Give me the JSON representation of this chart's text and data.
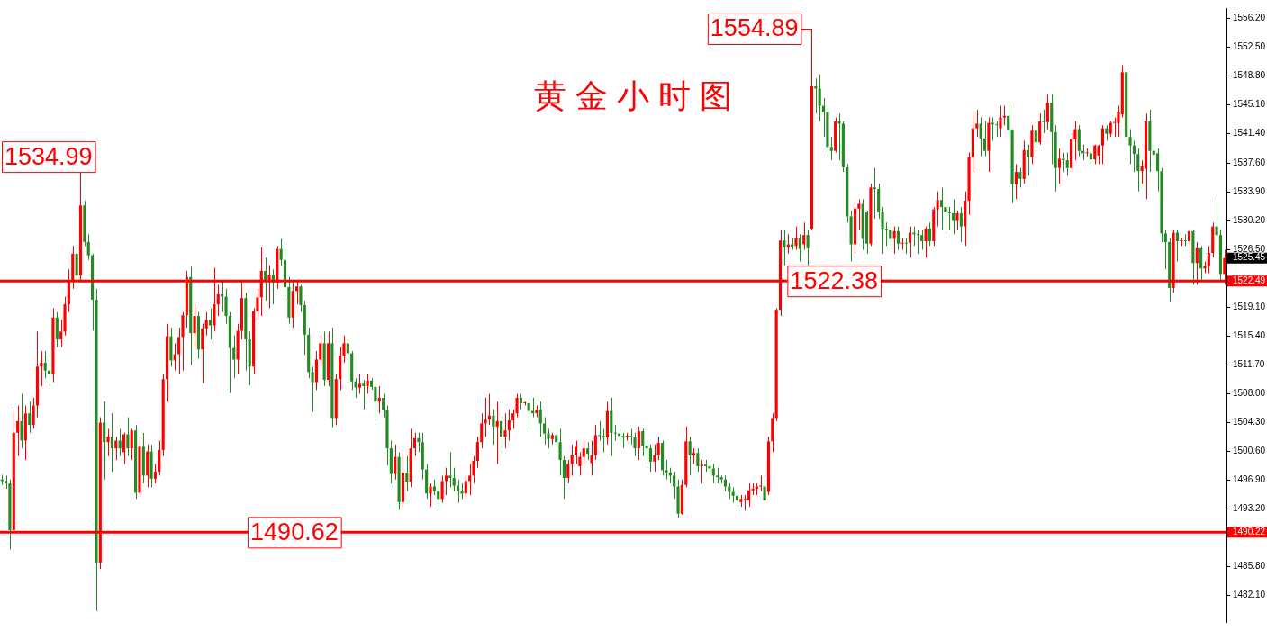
{
  "chart_data": {
    "type": "candlestick",
    "title": "黄金小时图",
    "colors": [
      "#228b22",
      "#228b22",
      "#228b22",
      "#ff0000",
      "#ff0000",
      "#228b22",
      "#ff0000",
      "#228b22",
      "#ff0000",
      "#ff0000",
      "#ff0000",
      "#228b22",
      "#228b22",
      "#ff0000",
      "#228b22",
      "#ff0000",
      "#ff0000",
      "#ff0000",
      "#ff0000",
      "#228b22",
      "#ff0000",
      "#228b22",
      "#228b22",
      "#228b22",
      "#228b22",
      "#ff0000",
      "#228b22",
      "#ff0000",
      "#228b22",
      "#ff0000",
      "#228b22",
      "#ff0000",
      "#228b22",
      "#ff0000",
      "#228b22",
      "#ff0000",
      "#228b22",
      "#ff0000",
      "#228b22",
      "#ff0000",
      "#ff0000",
      "#ff0000",
      "#ff0000",
      "#228b22",
      "#ff0000",
      "#ff0000",
      "#ff0000",
      "#ff0000",
      "#228b22",
      "#ff0000",
      "#228b22",
      "#ff0000",
      "#ff0000",
      "#228b22",
      "#ff0000",
      "#ff0000",
      "#228b22",
      "#228b22",
      "#228b22",
      "#228b22",
      "#ff0000",
      "#ff0000",
      "#228b22",
      "#228b22",
      "#ff0000",
      "#ff0000",
      "#ff0000",
      "#228b22",
      "#ff0000",
      "#228b22",
      "#ff0000",
      "#228b22",
      "#228b22",
      "#228b22",
      "#ff0000",
      "#ff0000",
      "#228b22",
      "#228b22",
      "#228b22",
      "#228b22",
      "#ff0000",
      "#ff0000",
      "#228b22",
      "#ff0000",
      "#228b22",
      "#ff0000",
      "#ff0000",
      "#ff0000",
      "#228b22",
      "#228b22",
      "#228b22",
      "#ff0000",
      "#228b22",
      "#ff0000",
      "#228b22",
      "#228b22",
      "#ff0000",
      "#228b22",
      "#228b22",
      "#228b22",
      "#ff0000",
      "#228b22",
      "#ff0000",
      "#228b22",
      "#ff0000",
      "#ff0000",
      "#228b22",
      "#228b22",
      "#228b22",
      "#ff0000",
      "#228b22",
      "#228b22",
      "#ff0000",
      "#ff0000",
      "#228b22",
      "#228b22",
      "#228b22",
      "#228b22",
      "#ff0000",
      "#ff0000",
      "#ff0000",
      "#ff0000",
      "#ff0000",
      "#ff0000",
      "#ff0000",
      "#228b22",
      "#ff0000",
      "#228b22",
      "#ff0000",
      "#ff0000",
      "#ff0000",
      "#ff0000",
      "#228b22",
      "#ff0000",
      "#228b22",
      "#228b22",
      "#ff0000",
      "#228b22",
      "#228b22",
      "#228b22",
      "#ff0000",
      "#228b22",
      "#228b22",
      "#228b22",
      "#ff0000",
      "#ff0000",
      "#ff0000",
      "#ff0000",
      "#ff0000",
      "#228b22",
      "#ff0000",
      "#ff0000",
      "#228b22",
      "#228b22",
      "#ff0000",
      "#228b22",
      "#228b22",
      "#228b22",
      "#228b22",
      "#ff0000",
      "#228b22",
      "#228b22",
      "#ff0000",
      "#228b22",
      "#228b22",
      "#228b22",
      "#ff0000",
      "#ff0000",
      "#228b22",
      "#228b22",
      "#228b22",
      "#228b22",
      "#228b22",
      "#ff0000",
      "#ff0000",
      "#228b22",
      "#ff0000",
      "#228b22",
      "#ff0000",
      "#228b22",
      "#228b22",
      "#228b22",
      "#228b22",
      "#228b22",
      "#228b22",
      "#228b22",
      "#228b22",
      "#228b22",
      "#ff0000",
      "#ff0000",
      "#ff0000",
      "#ff0000",
      "#ff0000",
      "#ff0000",
      "#228b22",
      "#ff0000",
      "#ff0000",
      "#ff0000",
      "#ff0000",
      "#228b22",
      "#ff0000",
      "#228b22",
      "#ff0000",
      "#228b22",
      "#ff0000",
      "#228b22",
      "#ff0000",
      "#228b22",
      "#228b22",
      "#228b22",
      "#228b22",
      "#228b22",
      "#ff0000",
      "#228b22",
      "#228b22",
      "#228b22",
      "#228b22",
      "#ff0000",
      "#ff0000",
      "#228b22",
      "#228b22",
      "#ff0000",
      "#228b22",
      "#228b22",
      "#228b22",
      "#228b22",
      "#228b22",
      "#ff0000",
      "#228b22",
      "#ff0000",
      "#228b22",
      "#ff0000",
      "#228b22",
      "#228b22",
      "#228b22",
      "#ff0000",
      "#228b22",
      "#ff0000",
      "#ff0000",
      "#228b22",
      "#228b22",
      "#228b22",
      "#228b22",
      "#ff0000",
      "#228b22",
      "#ff0000",
      "#ff0000",
      "#ff0000",
      "#ff0000",
      "#228b22",
      "#228b22",
      "#ff0000",
      "#228b22",
      "#228b22",
      "#ff0000",
      "#ff0000",
      "#228b22",
      "#228b22",
      "#ff0000",
      "#228b22",
      "#ff0000",
      "#228b22",
      "#ff0000",
      "#228b22",
      "#ff0000",
      "#228b22",
      "#ff0000",
      "#228b22",
      "#228b22",
      "#ff0000",
      "#228b22",
      "#228b22",
      "#ff0000",
      "#ff0000",
      "#228b22",
      "#228b22",
      "#ff0000",
      "#228b22",
      "#ff0000",
      "#ff0000",
      "#ff0000",
      "#228b22",
      "#ff0000",
      "#ff0000",
      "#ff0000",
      "#ff0000",
      "#228b22",
      "#228b22",
      "#228b22",
      "#228b22",
      "#ff0000",
      "#ff0000",
      "#228b22",
      "#228b22",
      "#228b22",
      "#228b22",
      "#228b22",
      "#228b22",
      "#ff0000",
      "#228b22",
      "#ff0000",
      "#228b22",
      "#ff0000",
      "#228b22",
      "#ff0000",
      "#228b22",
      "#ff0000",
      "#ff0000",
      "#ff0000",
      "#228b22",
      "#228b22",
      "#ff0000"
    ],
    "ylim": [
      1478.7,
      1557.55
    ],
    "yticks": [
      {
        "value": 1482.1,
        "label": "1482.10"
      },
      {
        "value": 1485.8,
        "label": "1485.80"
      },
      {
        "value": 1493.2,
        "label": "1493.20"
      },
      {
        "value": 1496.9,
        "label": "1496.90"
      },
      {
        "value": 1500.6,
        "label": "1500.60"
      },
      {
        "value": 1504.3,
        "label": "1504.30"
      },
      {
        "value": 1508,
        "label": "1508.00"
      },
      {
        "value": 1511.7,
        "label": "1511.70"
      },
      {
        "value": 1515.4,
        "label": "1515.40"
      },
      {
        "value": 1519.1,
        "label": "1519.10"
      },
      {
        "value": 1526.5,
        "label": "1526.50"
      },
      {
        "value": 1530.2,
        "label": "1530.20"
      },
      {
        "value": 1533.9,
        "label": "1533.90"
      },
      {
        "value": 1537.6,
        "label": "1537.60"
      },
      {
        "value": 1541.4,
        "label": "1541.40"
      },
      {
        "value": 1545.1,
        "label": "1545.10"
      },
      {
        "value": 1548.8,
        "label": "1548.80"
      },
      {
        "value": 1552.5,
        "label": "1552.50"
      },
      {
        "value": 1556.2,
        "label": "1556.20"
      }
    ],
    "ref_lines": [
      {
        "axis": "y",
        "value": 1522.49,
        "label": "1522.49",
        "color": "#ff0000"
      },
      {
        "axis": "y",
        "value": 1490.22,
        "label": "1490.22",
        "color": "#ff0000"
      }
    ],
    "annotations": [
      "1534.99",
      "1554.89",
      "1522.38",
      "1490.62",
      "1525.45"
    ],
    "categories": [
      null,
      null,
      null,
      null,
      null,
      null,
      null,
      null,
      null,
      null,
      null,
      null,
      null,
      null,
      null,
      null,
      null,
      null,
      null,
      null,
      null,
      null,
      null,
      null,
      null,
      null,
      null,
      null,
      null,
      null,
      null,
      null,
      null,
      null,
      null,
      null,
      null,
      null,
      null,
      null,
      null,
      null,
      null,
      null,
      null,
      null,
      null,
      null,
      null,
      null,
      null,
      null,
      null,
      null,
      null,
      null,
      null,
      null,
      null,
      null,
      null,
      null,
      null,
      null,
      null,
      null,
      null,
      null,
      null,
      null,
      null,
      null,
      null,
      null,
      null,
      null,
      null,
      null,
      null,
      null,
      null,
      null,
      null,
      null,
      null,
      null,
      null,
      null,
      null,
      null,
      null,
      null,
      null,
      null,
      null,
      null,
      null,
      null,
      null,
      null,
      null,
      null,
      null,
      null,
      null,
      null,
      null,
      null,
      null,
      null,
      null,
      null,
      null,
      null,
      null,
      null,
      null,
      null,
      null,
      null,
      null,
      null,
      null,
      null,
      null,
      null,
      null,
      null,
      null,
      null,
      null,
      null,
      null,
      null,
      null,
      null,
      null,
      null,
      null,
      null,
      null,
      null,
      null,
      null,
      null,
      null,
      null,
      null,
      null,
      null,
      null,
      null,
      null,
      null,
      null,
      null,
      null,
      null,
      null,
      null,
      null,
      null,
      null,
      null,
      null,
      null,
      null,
      null,
      null,
      null,
      null,
      null,
      null,
      null,
      null,
      null,
      null,
      null,
      null,
      null,
      null,
      null,
      null,
      null,
      null,
      null,
      null,
      null,
      null,
      null,
      null,
      null,
      null,
      null,
      null,
      null,
      null,
      null,
      null,
      null,
      null,
      null,
      null,
      null,
      null,
      null,
      null,
      null,
      null,
      null,
      null,
      null,
      null,
      null,
      null,
      null,
      null,
      null,
      null,
      null,
      null,
      null,
      null,
      null,
      null,
      null,
      null,
      null,
      null,
      null,
      null,
      null,
      null,
      null,
      null,
      null,
      null,
      null,
      null,
      null,
      null,
      null,
      null,
      null,
      null,
      null,
      null,
      null,
      null,
      null,
      null,
      null,
      null,
      null,
      null,
      null,
      null,
      null,
      null,
      null,
      null,
      null,
      null,
      null,
      null,
      null,
      null,
      null,
      null,
      null,
      null,
      null,
      null,
      null,
      null,
      null,
      null,
      null,
      null,
      null,
      null,
      null,
      null,
      null,
      null,
      null,
      null,
      null,
      null,
      null,
      null,
      null,
      null,
      null,
      null,
      null,
      null,
      null,
      null,
      null,
      null,
      null,
      null,
      null,
      null,
      null,
      null,
      null,
      null,
      null,
      null,
      null
    ],
    "ohlc": [
      [
        1497.0,
        1497.6,
        1496.3,
        1496.8
      ],
      [
        1496.8,
        1497.5,
        1495.8,
        1496.5
      ],
      [
        1496.5,
        1497.0,
        1488.0,
        1490.5
      ],
      [
        1490.5,
        1506.0,
        1490.0,
        1503.0
      ],
      [
        1503.0,
        1506.5,
        1500.0,
        1504.5
      ],
      [
        1504.5,
        1508.0,
        1501.0,
        1502.0
      ],
      [
        1502.0,
        1506.5,
        1499.5,
        1505.5
      ],
      [
        1505.5,
        1507.0,
        1503.0,
        1504.0
      ],
      [
        1504.0,
        1507.5,
        1503.5,
        1506.5
      ],
      [
        1506.5,
        1516.0,
        1505.0,
        1511.5
      ],
      [
        1511.5,
        1513.5,
        1509.0,
        1512.0
      ],
      [
        1512.0,
        1513.5,
        1510.0,
        1511.0
      ],
      [
        1511.0,
        1513.0,
        1509.0,
        1510.5
      ],
      [
        1510.5,
        1519.0,
        1509.5,
        1517.8
      ],
      [
        1517.8,
        1518.5,
        1514.0,
        1515.0
      ],
      [
        1515.0,
        1517.5,
        1514.0,
        1516.0
      ],
      [
        1516.0,
        1520.5,
        1515.5,
        1519.5
      ],
      [
        1519.5,
        1524.0,
        1518.5,
        1522.6
      ],
      [
        1522.6,
        1527.0,
        1521.5,
        1526.0
      ],
      [
        1526.0,
        1526.8,
        1522.0,
        1523.2
      ],
      [
        1523.2,
        1534.99,
        1522.5,
        1532.2
      ],
      [
        1532.2,
        1532.8,
        1527.0,
        1527.5
      ],
      [
        1527.5,
        1528.5,
        1525.2,
        1525.8
      ],
      [
        1525.8,
        1526.0,
        1516.1,
        1520.1
      ],
      [
        1520.1,
        1521.5,
        1480.1,
        1486.3
      ],
      [
        1486.3,
        1505.0,
        1485.5,
        1504.3
      ],
      [
        1504.3,
        1507.0,
        1497.0,
        1501.8
      ],
      [
        1501.8,
        1503.5,
        1500.0,
        1502.5
      ],
      [
        1502.5,
        1505.5,
        1498.0,
        1501.0
      ],
      [
        1501.0,
        1502.5,
        1499.5,
        1502.0
      ],
      [
        1502.0,
        1503.5,
        1500.0,
        1501.0
      ],
      [
        1500.5,
        1503.0,
        1499.0,
        1502.8
      ],
      [
        1502.8,
        1505.0,
        1500.0,
        1501.0
      ],
      [
        1501.0,
        1503.5,
        1499.5,
        1503.3
      ],
      [
        1503.3,
        1504.0,
        1494.5,
        1495.3
      ],
      [
        1495.3,
        1502.5,
        1495.0,
        1501.2
      ],
      [
        1501.2,
        1503.0,
        1496.5,
        1497.5
      ],
      [
        1497.5,
        1501.5,
        1496.0,
        1500.6
      ],
      [
        1500.6,
        1501.5,
        1496.0,
        1497.1
      ],
      [
        1497.1,
        1499.0,
        1496.5,
        1498.0
      ],
      [
        1498.0,
        1502.0,
        1497.5,
        1500.8
      ],
      [
        1500.8,
        1510.5,
        1500.0,
        1509.9
      ],
      [
        1509.9,
        1517.0,
        1507.0,
        1515.4
      ],
      [
        1515.4,
        1516.5,
        1511.5,
        1512.3
      ],
      [
        1512.3,
        1514.5,
        1511.0,
        1513.1
      ],
      [
        1513.1,
        1516.5,
        1510.5,
        1515.3
      ],
      [
        1515.3,
        1518.5,
        1511.0,
        1518.1
      ],
      [
        1518.1,
        1523.8,
        1516.5,
        1523.0
      ],
      [
        1523.0,
        1524.3,
        1511.7,
        1515.8
      ],
      [
        1515.8,
        1519.5,
        1514.0,
        1518.0
      ],
      [
        1518.0,
        1518.5,
        1512.5,
        1513.7
      ],
      [
        1513.7,
        1517.0,
        1509.4,
        1516.4
      ],
      [
        1516.4,
        1518.5,
        1515.5,
        1517.5
      ],
      [
        1517.5,
        1519.0,
        1515.0,
        1516.8
      ],
      [
        1516.8,
        1524.2,
        1516.0,
        1519.5
      ],
      [
        1519.5,
        1522.0,
        1518.0,
        1520.8
      ],
      [
        1520.8,
        1522.5,
        1518.5,
        1520.5
      ],
      [
        1520.5,
        1521.5,
        1517.0,
        1518.0
      ],
      [
        1518.0,
        1518.5,
        1508.1,
        1513.9
      ],
      [
        1513.9,
        1515.5,
        1510.0,
        1512.4
      ],
      [
        1512.4,
        1517.0,
        1510.5,
        1516.1
      ],
      [
        1516.1,
        1522.4,
        1515.0,
        1520.3
      ],
      [
        1520.3,
        1521.0,
        1511.0,
        1515.0
      ],
      [
        1515.0,
        1516.0,
        1509.1,
        1511.5
      ],
      [
        1511.5,
        1519.0,
        1510.5,
        1518.6
      ],
      [
        1518.6,
        1521.5,
        1517.5,
        1520.4
      ],
      [
        1520.4,
        1526.8,
        1518.0,
        1523.8
      ],
      [
        1523.8,
        1525.5,
        1520.0,
        1522.6
      ],
      [
        1522.6,
        1524.5,
        1519.0,
        1523.3
      ],
      [
        1523.3,
        1524.0,
        1519.5,
        1522.3
      ],
      [
        1522.3,
        1527.0,
        1521.5,
        1526.6
      ],
      [
        1526.6,
        1527.9,
        1524.5,
        1525.2
      ],
      [
        1525.2,
        1527.0,
        1520.5,
        1521.7
      ],
      [
        1521.7,
        1523.0,
        1517.0,
        1517.8
      ],
      [
        1517.8,
        1522.5,
        1516.5,
        1521.2
      ],
      [
        1521.2,
        1522.5,
        1519.5,
        1521.8
      ],
      [
        1521.8,
        1522.0,
        1518.5,
        1519.4
      ],
      [
        1519.4,
        1520.0,
        1513.0,
        1515.6
      ],
      [
        1515.6,
        1516.5,
        1510.0,
        1510.8
      ],
      [
        1510.8,
        1511.5,
        1505.7,
        1509.5
      ],
      [
        1509.5,
        1513.5,
        1508.5,
        1512.4
      ],
      [
        1512.4,
        1515.5,
        1511.5,
        1514.5
      ],
      [
        1514.5,
        1516.0,
        1509.0,
        1509.8
      ],
      [
        1509.8,
        1516.0,
        1509.0,
        1514.5
      ],
      [
        1514.5,
        1516.5,
        1503.7,
        1504.9
      ],
      [
        1504.9,
        1510.5,
        1504.0,
        1509.9
      ],
      [
        1509.9,
        1514.0,
        1508.5,
        1512.9
      ],
      [
        1512.9,
        1515.5,
        1512.0,
        1514.5
      ],
      [
        1514.5,
        1515.0,
        1509.5,
        1513.2
      ],
      [
        1513.2,
        1513.5,
        1508.5,
        1509.6
      ],
      [
        1509.6,
        1510.0,
        1507.5,
        1508.8
      ],
      [
        1508.8,
        1510.5,
        1508.0,
        1509.3
      ],
      [
        1509.3,
        1509.8,
        1506.0,
        1509.0
      ],
      [
        1509.0,
        1510.5,
        1508.0,
        1509.7
      ],
      [
        1509.7,
        1510.0,
        1508.5,
        1508.9
      ],
      [
        1508.9,
        1509.5,
        1504.5,
        1507.0
      ],
      [
        1507.0,
        1509.0,
        1505.5,
        1507.5
      ],
      [
        1507.5,
        1508.0,
        1505.0,
        1505.9
      ],
      [
        1505.9,
        1506.5,
        1498.8,
        1501.0
      ],
      [
        1501.0,
        1502.0,
        1496.5,
        1497.7
      ],
      [
        1497.7,
        1501.5,
        1497.0,
        1499.9
      ],
      [
        1499.9,
        1500.5,
        1493.1,
        1494.1
      ],
      [
        1494.1,
        1500.5,
        1493.5,
        1497.9
      ],
      [
        1497.9,
        1500.0,
        1495.5,
        1496.7
      ],
      [
        1496.7,
        1503.5,
        1496.0,
        1501.0
      ],
      [
        1501.0,
        1503.0,
        1500.0,
        1502.3
      ],
      [
        1502.3,
        1503.0,
        1500.5,
        1501.8
      ],
      [
        1501.8,
        1503.0,
        1497.0,
        1498.3
      ],
      [
        1498.3,
        1499.0,
        1494.5,
        1495.2
      ],
      [
        1495.2,
        1496.5,
        1493.5,
        1496.1
      ],
      [
        1496.1,
        1497.0,
        1495.0,
        1495.5
      ],
      [
        1495.5,
        1497.0,
        1493.0,
        1494.5
      ],
      [
        1494.5,
        1497.5,
        1494.0,
        1496.8
      ],
      [
        1496.8,
        1498.5,
        1495.0,
        1497.5
      ],
      [
        1497.5,
        1500.5,
        1496.0,
        1497.2
      ],
      [
        1497.2,
        1498.5,
        1495.5,
        1496.2
      ],
      [
        1496.2,
        1497.0,
        1494.0,
        1495.5
      ],
      [
        1495.5,
        1496.5,
        1494.5,
        1495.2
      ],
      [
        1495.2,
        1497.5,
        1494.5,
        1496.8
      ],
      [
        1496.8,
        1499.0,
        1495.0,
        1497.5
      ],
      [
        1497.5,
        1500.0,
        1496.5,
        1499.4
      ],
      [
        1499.4,
        1502.5,
        1498.5,
        1501.8
      ],
      [
        1501.8,
        1505.5,
        1501.0,
        1504.2
      ],
      [
        1504.2,
        1507.5,
        1502.5,
        1504.7
      ],
      [
        1504.7,
        1508.0,
        1504.0,
        1505.2
      ],
      [
        1505.2,
        1506.0,
        1501.5,
        1503.8
      ],
      [
        1503.8,
        1507.0,
        1499.0,
        1504.5
      ],
      [
        1504.5,
        1505.0,
        1500.5,
        1502.5
      ],
      [
        1502.5,
        1505.5,
        1501.0,
        1503.3
      ],
      [
        1503.3,
        1506.0,
        1502.0,
        1504.6
      ],
      [
        1504.6,
        1506.0,
        1503.5,
        1505.5
      ],
      [
        1505.5,
        1508.0,
        1505.0,
        1507.5
      ],
      [
        1507.5,
        1508.0,
        1506.0,
        1506.8
      ],
      [
        1506.8,
        1507.0,
        1506.5,
        1506.8
      ],
      [
        1506.8,
        1507.5,
        1503.5,
        1505.8
      ],
      [
        1505.8,
        1507.5,
        1505.0,
        1505.5
      ],
      [
        1505.5,
        1506.5,
        1505.0,
        1506.0
      ],
      [
        1506.0,
        1507.0,
        1502.5,
        1504.2
      ],
      [
        1504.2,
        1505.0,
        1501.5,
        1502.9
      ],
      [
        1502.9,
        1503.5,
        1501.0,
        1502.2
      ],
      [
        1502.2,
        1503.0,
        1501.5,
        1502.7
      ],
      [
        1502.7,
        1504.0,
        1500.5,
        1501.8
      ],
      [
        1501.8,
        1503.5,
        1497.5,
        1499.5
      ],
      [
        1499.5,
        1500.0,
        1494.5,
        1497.2
      ],
      [
        1497.2,
        1499.5,
        1496.5,
        1499.0
      ],
      [
        1499.0,
        1501.5,
        1497.5,
        1500.2
      ],
      [
        1500.2,
        1502.0,
        1499.0,
        1501.2
      ],
      [
        1498.7,
        1500.5,
        1497.5,
        1499.9
      ],
      [
        1499.9,
        1502.0,
        1499.0,
        1501.0
      ],
      [
        1501.0,
        1501.8,
        1499.5,
        1500.3
      ],
      [
        1499.1,
        1502.0,
        1497.5,
        1500.1
      ],
      [
        1500.1,
        1504.0,
        1499.5,
        1502.7
      ],
      [
        1502.7,
        1504.5,
        1502.0,
        1502.6
      ],
      [
        1502.6,
        1503.5,
        1500.5,
        1502.4
      ],
      [
        1502.4,
        1507.0,
        1501.5,
        1505.8
      ],
      [
        1505.8,
        1507.5,
        1500.0,
        1503.0
      ],
      [
        1503.0,
        1504.0,
        1502.0,
        1502.9
      ],
      [
        1502.9,
        1503.5,
        1501.5,
        1502.6
      ],
      [
        1502.6,
        1503.0,
        1501.0,
        1502.4
      ],
      [
        1502.4,
        1503.0,
        1502.0,
        1502.6
      ],
      [
        1502.6,
        1503.5,
        1501.5,
        1502.4
      ],
      [
        1502.4,
        1503.0,
        1500.0,
        1501.0
      ],
      [
        1501.0,
        1503.8,
        1499.5,
        1503.2
      ],
      [
        1503.2,
        1503.5,
        1500.0,
        1501.3
      ],
      [
        1501.3,
        1502.0,
        1499.0,
        1501.0
      ],
      [
        1501.0,
        1501.5,
        1498.0,
        1499.3
      ],
      [
        1499.3,
        1501.5,
        1498.0,
        1500.1
      ],
      [
        1500.1,
        1502.5,
        1499.5,
        1501.7
      ],
      [
        1501.7,
        1502.0,
        1497.5,
        1498.2
      ],
      [
        1498.2,
        1499.5,
        1497.0,
        1497.9
      ],
      [
        1497.9,
        1498.5,
        1496.5,
        1497.5
      ],
      [
        1497.5,
        1498.0,
        1494.5,
        1496.1
      ],
      [
        1496.1,
        1497.0,
        1492.1,
        1492.6
      ],
      [
        1492.6,
        1497.0,
        1492.5,
        1496.3
      ],
      [
        1496.3,
        1503.8,
        1496.0,
        1501.9
      ],
      [
        1501.9,
        1502.5,
        1497.5,
        1500.1
      ],
      [
        1500.1,
        1501.0,
        1499.0,
        1500.4
      ],
      [
        1500.4,
        1501.0,
        1498.0,
        1498.7
      ],
      [
        1498.7,
        1499.5,
        1496.5,
        1498.9
      ],
      [
        1498.9,
        1499.5,
        1498.0,
        1498.7
      ],
      [
        1498.7,
        1499.5,
        1498.0,
        1498.4
      ],
      [
        1498.4,
        1499.0,
        1496.5,
        1497.5
      ],
      [
        1497.5,
        1498.5,
        1496.5,
        1497.3
      ],
      [
        1497.3,
        1497.5,
        1496.5,
        1497.0
      ],
      [
        1497.0,
        1497.5,
        1495.5,
        1496.1
      ],
      [
        1496.1,
        1496.5,
        1494.5,
        1495.4
      ],
      [
        1495.4,
        1496.0,
        1494.0,
        1494.9
      ],
      [
        1494.9,
        1495.5,
        1493.5,
        1494.3
      ],
      [
        1494.1,
        1495.0,
        1493.5,
        1494.5
      ],
      [
        1494.3,
        1495.0,
        1493.0,
        1494.5
      ],
      [
        1494.3,
        1496.5,
        1493.5,
        1495.6
      ],
      [
        1495.6,
        1496.5,
        1495.0,
        1495.8
      ],
      [
        1495.8,
        1496.5,
        1495.0,
        1496.1
      ],
      [
        1496.1,
        1497.5,
        1495.5,
        1496.2
      ],
      [
        1496.1,
        1497.0,
        1494.0,
        1494.3
      ],
      [
        1495.4,
        1502.5,
        1495.0,
        1501.9
      ],
      [
        1501.9,
        1505.5,
        1500.5,
        1504.9
      ],
      [
        1504.9,
        1519.0,
        1504.5,
        1518.8
      ],
      [
        1518.8,
        1529.0,
        1518.0,
        1527.7
      ],
      [
        1527.7,
        1529.0,
        1524.5,
        1526.8
      ],
      [
        1526.8,
        1528.5,
        1526.0,
        1527.2
      ],
      [
        1527.2,
        1528.0,
        1526.5,
        1526.9
      ],
      [
        1527.0,
        1529.5,
        1526.5,
        1528.0
      ],
      [
        1528.0,
        1528.5,
        1525.0,
        1526.6
      ],
      [
        1527.2,
        1530.0,
        1526.5,
        1528.4
      ],
      [
        1528.4,
        1529.0,
        1524.5,
        1526.7
      ],
      [
        1529.2,
        1554.89,
        1529.0,
        1547.5
      ],
      [
        1547.5,
        1548.5,
        1544.0,
        1547.2
      ],
      [
        1547.2,
        1549.0,
        1543.0,
        1545.0
      ],
      [
        1545.0,
        1546.0,
        1541.0,
        1544.2
      ],
      [
        1544.2,
        1545.0,
        1538.5,
        1539.7
      ],
      [
        1539.7,
        1541.0,
        1538.0,
        1539.2
      ],
      [
        1539.2,
        1543.5,
        1539.0,
        1543.0
      ],
      [
        1543.0,
        1544.0,
        1538.0,
        1542.7
      ],
      [
        1542.7,
        1543.0,
        1536.5,
        1537.1
      ],
      [
        1537.1,
        1537.5,
        1530.0,
        1530.8
      ],
      [
        1530.8,
        1531.5,
        1525.0,
        1527.2
      ],
      [
        1527.2,
        1532.5,
        1526.0,
        1531.8
      ],
      [
        1531.8,
        1533.0,
        1529.0,
        1532.4
      ],
      [
        1532.4,
        1533.0,
        1526.5,
        1527.9
      ],
      [
        1531.3,
        1531.5,
        1526.0,
        1527.3
      ],
      [
        1527.3,
        1535.0,
        1527.0,
        1534.5
      ],
      [
        1534.5,
        1537.0,
        1530.5,
        1534.3
      ],
      [
        1534.3,
        1535.0,
        1530.5,
        1531.3
      ],
      [
        1531.3,
        1532.0,
        1526.0,
        1529.1
      ],
      [
        1529.1,
        1530.0,
        1527.0,
        1529.0
      ],
      [
        1529.0,
        1529.5,
        1526.5,
        1527.9
      ],
      [
        1527.9,
        1529.5,
        1526.0,
        1528.9
      ],
      [
        1528.9,
        1529.5,
        1526.5,
        1527.3
      ],
      [
        1527.3,
        1528.0,
        1526.5,
        1527.4
      ],
      [
        1527.4,
        1528.0,
        1526.0,
        1527.3
      ],
      [
        1527.4,
        1529.5,
        1525.5,
        1528.7
      ],
      [
        1528.7,
        1529.5,
        1527.0,
        1528.5
      ],
      [
        1528.5,
        1529.0,
        1526.0,
        1528.4
      ],
      [
        1528.4,
        1529.0,
        1526.5,
        1527.6
      ],
      [
        1527.6,
        1529.5,
        1525.5,
        1529.2
      ],
      [
        1529.2,
        1530.0,
        1527.0,
        1527.6
      ],
      [
        1527.6,
        1532.0,
        1527.0,
        1531.7
      ],
      [
        1531.7,
        1534.0,
        1529.5,
        1532.9
      ],
      [
        1532.9,
        1534.5,
        1529.0,
        1532.0
      ],
      [
        1532.0,
        1532.5,
        1528.5,
        1531.3
      ],
      [
        1531.3,
        1532.0,
        1529.0,
        1531.2
      ],
      [
        1531.2,
        1533.0,
        1528.5,
        1530.2
      ],
      [
        1530.2,
        1531.5,
        1529.0,
        1531.2
      ],
      [
        1531.2,
        1532.0,
        1527.5,
        1529.5
      ],
      [
        1529.5,
        1534.0,
        1527.0,
        1532.8
      ],
      [
        1532.8,
        1539.0,
        1531.0,
        1538.4
      ],
      [
        1538.4,
        1544.0,
        1536.5,
        1542.1
      ],
      [
        1542.1,
        1544.5,
        1541.0,
        1542.7
      ],
      [
        1542.7,
        1543.5,
        1538.5,
        1540.8
      ],
      [
        1540.8,
        1543.0,
        1538.5,
        1539.2
      ],
      [
        1539.2,
        1543.5,
        1536.5,
        1542.8
      ],
      [
        1542.8,
        1543.5,
        1540.5,
        1542.6
      ],
      [
        1542.6,
        1543.0,
        1541.0,
        1542.5
      ],
      [
        1542.1,
        1545.0,
        1541.0,
        1543.5
      ],
      [
        1543.5,
        1545.0,
        1542.5,
        1543.7
      ],
      [
        1543.7,
        1545.0,
        1541.0,
        1541.9
      ],
      [
        1541.9,
        1542.0,
        1532.5,
        1534.9
      ],
      [
        1534.9,
        1537.5,
        1533.0,
        1536.5
      ],
      [
        1536.5,
        1537.0,
        1534.5,
        1535.6
      ],
      [
        1535.6,
        1540.5,
        1535.0,
        1539.3
      ],
      [
        1539.3,
        1540.0,
        1536.0,
        1538.4
      ],
      [
        1538.4,
        1542.5,
        1537.5,
        1541.8
      ],
      [
        1541.8,
        1542.5,
        1539.5,
        1540.3
      ],
      [
        1540.3,
        1544.0,
        1540.0,
        1543.0
      ],
      [
        1543.0,
        1544.5,
        1541.5,
        1542.9
      ],
      [
        1542.9,
        1546.5,
        1542.0,
        1545.4
      ],
      [
        1545.4,
        1546.5,
        1537.5,
        1541.6
      ],
      [
        1541.6,
        1542.5,
        1534.0,
        1537.0
      ],
      [
        1537.0,
        1539.5,
        1535.0,
        1538.2
      ],
      [
        1538.2,
        1539.0,
        1536.5,
        1538.0
      ],
      [
        1538.0,
        1539.0,
        1536.0,
        1537.0
      ],
      [
        1537.0,
        1541.5,
        1536.5,
        1540.7
      ],
      [
        1540.7,
        1543.0,
        1538.0,
        1542.0
      ],
      [
        1542.0,
        1542.5,
        1538.5,
        1539.2
      ],
      [
        1539.2,
        1540.0,
        1538.0,
        1538.9
      ],
      [
        1538.9,
        1539.5,
        1538.5,
        1538.9
      ],
      [
        1538.9,
        1540.0,
        1537.5,
        1538.1
      ],
      [
        1538.1,
        1540.0,
        1537.5,
        1539.9
      ],
      [
        1538.6,
        1540.0,
        1537.5,
        1539.9
      ],
      [
        1539.9,
        1542.5,
        1537.5,
        1542.1
      ],
      [
        1542.1,
        1542.5,
        1540.5,
        1541.4
      ],
      [
        1541.4,
        1543.0,
        1541.0,
        1542.8
      ],
      [
        1542.8,
        1543.5,
        1541.0,
        1542.8
      ],
      [
        1542.8,
        1545.0,
        1541.0,
        1544.2
      ],
      [
        1543.9,
        1550.2,
        1543.5,
        1549.3
      ],
      [
        1549.3,
        1549.8,
        1540.5,
        1541.0
      ],
      [
        1541.0,
        1542.0,
        1537.5,
        1539.9
      ],
      [
        1539.9,
        1540.5,
        1536.5,
        1538.8
      ],
      [
        1538.8,
        1539.5,
        1534.0,
        1536.6
      ],
      [
        1536.6,
        1538.0,
        1535.0,
        1537.2
      ],
      [
        1536.9,
        1544.0,
        1533.0,
        1543.0
      ],
      [
        1543.0,
        1544.5,
        1536.5,
        1539.2
      ],
      [
        1539.2,
        1540.0,
        1537.0,
        1538.7
      ],
      [
        1538.9,
        1539.5,
        1534.0,
        1536.6
      ],
      [
        1536.6,
        1537.0,
        1527.5,
        1528.6
      ],
      [
        1528.6,
        1529.0,
        1524.0,
        1527.5
      ],
      [
        1527.5,
        1528.0,
        1519.8,
        1521.6
      ],
      [
        1521.6,
        1529.0,
        1521.0,
        1528.7
      ],
      [
        1528.7,
        1529.0,
        1525.0,
        1527.6
      ],
      [
        1527.6,
        1528.0,
        1527.0,
        1527.6
      ],
      [
        1527.7,
        1528.5,
        1527.0,
        1527.6
      ],
      [
        1527.6,
        1529.0,
        1526.0,
        1528.9
      ],
      [
        1528.9,
        1529.0,
        1522.0,
        1524.8
      ],
      [
        1524.8,
        1527.5,
        1522.0,
        1526.7
      ],
      [
        1526.7,
        1527.0,
        1522.5,
        1524.1
      ],
      [
        1524.1,
        1525.0,
        1523.5,
        1524.4
      ],
      [
        1524.4,
        1527.0,
        1523.5,
        1526.1
      ],
      [
        1526.1,
        1530.0,
        1525.5,
        1529.5
      ],
      [
        1529.5,
        1533.0,
        1526.0,
        1528.4
      ],
      [
        1528.4,
        1529.0,
        1522.5,
        1523.4
      ],
      [
        1523.4,
        1526.5,
        1522.0,
        1525.45
      ]
    ]
  }
}
